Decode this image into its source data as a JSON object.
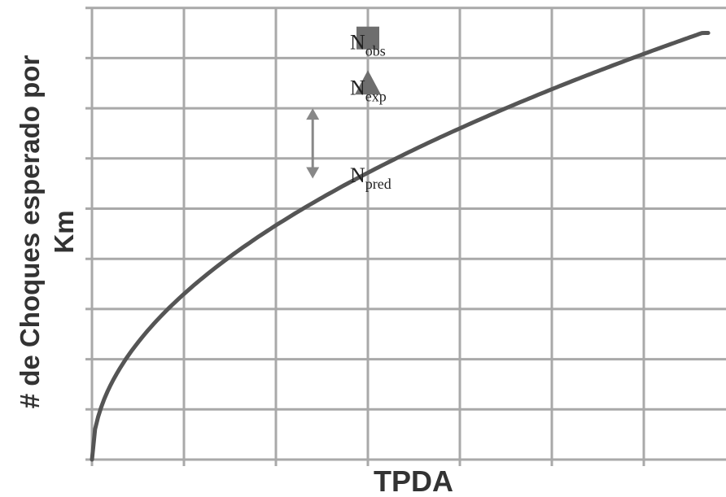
{
  "chart_data": {
    "type": "line",
    "xlabel": "TPDA",
    "ylabel_line1": "# de Choques esperado por",
    "ylabel_line2": "Km",
    "x_ticks": 7,
    "y_ticks": 9,
    "grid": true,
    "series": [
      {
        "curve": "increasing concave (power)",
        "x": [
          0,
          0.5,
          1,
          1.5,
          2,
          2.5,
          3,
          3.5,
          4,
          4.5,
          5,
          5.5,
          6,
          6.5,
          6.7
        ],
        "y": [
          0,
          2.2,
          3.3,
          4.05,
          4.7,
          5.25,
          5.75,
          6.2,
          6.6,
          7.0,
          7.35,
          7.7,
          8.05,
          8.4,
          8.5
        ]
      }
    ],
    "points": [
      {
        "id": "obs",
        "label": "N",
        "sub": "obs",
        "marker": "square",
        "x": 3,
        "y": 8.4
      },
      {
        "id": "exp",
        "label": "N",
        "sub": "exp",
        "marker": "triangle",
        "x": 3,
        "y": 7.5
      },
      {
        "id": "pred",
        "label": "N",
        "sub": "pred",
        "marker": "none",
        "x": 3,
        "y": 5.75
      }
    ],
    "annotation": {
      "type": "double-arrow",
      "x": 2.4,
      "y_from": 7.0,
      "y_to": 5.6
    },
    "colors": {
      "curve": "#555555",
      "grid": "#a9a9a9",
      "marker": "#6e6e6e",
      "arrow": "#888888"
    }
  }
}
